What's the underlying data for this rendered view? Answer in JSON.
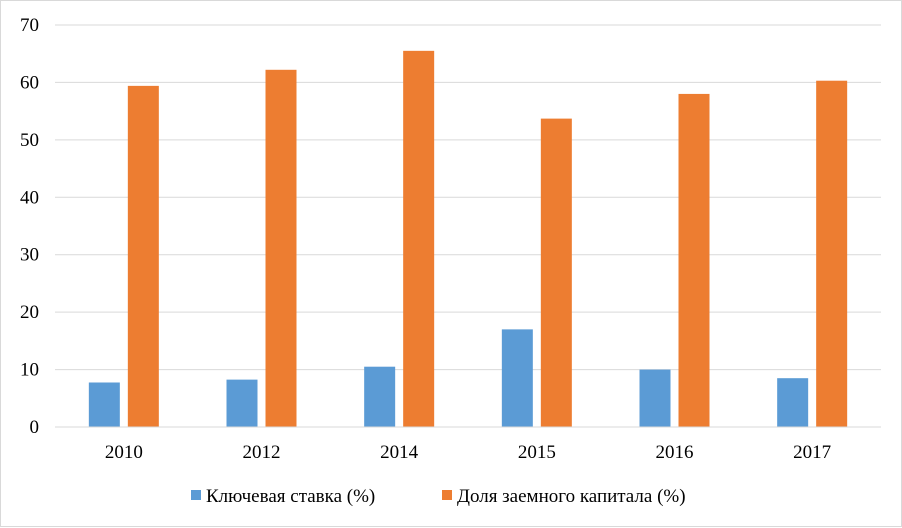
{
  "chart_data": {
    "type": "bar",
    "categories": [
      "2010",
      "2012",
      "2014",
      "2015",
      "2016",
      "2017"
    ],
    "series": [
      {
        "name": "Ключевая ставка (%)",
        "values": [
          7.75,
          8.25,
          10.5,
          17,
          10,
          8.5
        ]
      },
      {
        "name": "Доля заемного капитала (%)",
        "values": [
          59.4,
          62.2,
          65.5,
          53.7,
          58,
          60.3
        ]
      }
    ],
    "y_ticks": [
      "0",
      "10",
      "20",
      "30",
      "40",
      "50",
      "60",
      "70"
    ],
    "ylim": [
      0,
      70
    ],
    "grid": true,
    "legend_position": "bottom",
    "colors": [
      "#5b9bd5",
      "#ed7d31"
    ],
    "title": "",
    "xlabel": "",
    "ylabel": ""
  }
}
